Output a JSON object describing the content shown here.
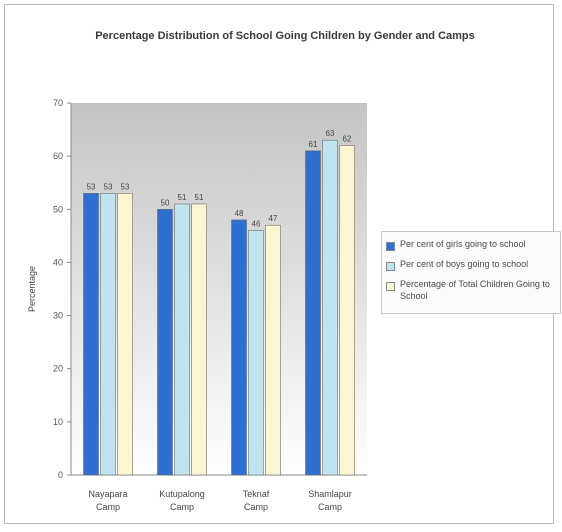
{
  "chart_data": {
    "type": "bar",
    "title": "Percentage Distribution of School Going Children by Gender and Camps",
    "xlabel": "",
    "ylabel": "Percentage",
    "ylim": [
      0,
      70
    ],
    "yticks": [
      0,
      10,
      20,
      30,
      40,
      50,
      60,
      70
    ],
    "categories": [
      [
        "Nayapara",
        "Camp"
      ],
      [
        "Kutupalong",
        "Camp"
      ],
      [
        "Teknaf",
        "Camp"
      ],
      [
        "Shamlapur",
        "Camp"
      ]
    ],
    "series": [
      {
        "name": "Per cent of girls going to school",
        "color": "#2f6fd0",
        "values": [
          53,
          50,
          48,
          61
        ]
      },
      {
        "name": "Per cent of boys going to school",
        "color": "#bfe3ef",
        "values": [
          53,
          51,
          46,
          63
        ]
      },
      {
        "name": "Percentage of Total Children Going to School",
        "color": "#fbf6cf",
        "values": [
          53,
          51,
          47,
          62
        ]
      }
    ],
    "grid": false,
    "legend": "right"
  }
}
